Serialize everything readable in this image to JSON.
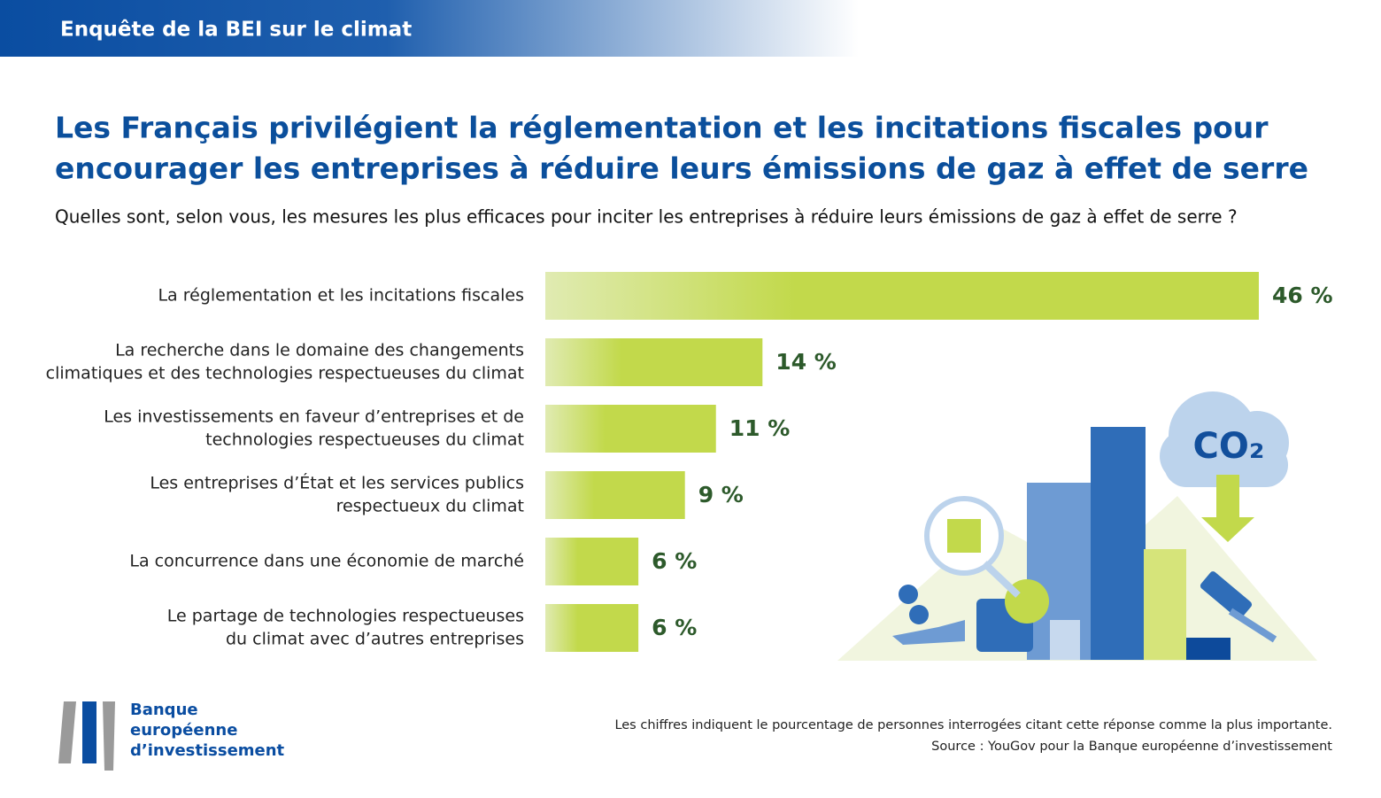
{
  "header": "Enquête de la BEI sur le climat",
  "chart_data": {
    "type": "bar",
    "orientation": "horizontal",
    "title": [
      "Les Français privilégient la réglementation et les incitations fiscales pour",
      "encourager les entreprises à réduire leurs émissions de gaz à effet de serre"
    ],
    "subtitle": "Quelles sont, selon vous, les mesures les plus efficaces pour inciter les entreprises à réduire leurs émissions de gaz à effet de serre ?",
    "categories": [
      [
        "La réglementation et les incitations fiscales"
      ],
      [
        "La recherche dans le domaine des changements",
        "climatiques et des technologies respectueuses du climat"
      ],
      [
        "Les investissements en faveur d’entreprises et de",
        "technologies respectueuses du climat"
      ],
      [
        "Les entreprises d’État et les services publics",
        "respectueux du climat"
      ],
      [
        "La concurrence dans une économie de marché"
      ],
      [
        "Le partage de technologies respectueuses",
        "du climat avec d’autres entreprises"
      ]
    ],
    "values": [
      46,
      14,
      11,
      9,
      6,
      6
    ],
    "value_labels": [
      "46 %",
      "14 %",
      "11 %",
      "9 %",
      "6 %",
      "6 %"
    ],
    "color": [
      "#e0ebb2",
      "#c2d94b"
    ],
    "footnote": "Les chiffres indiquent le pourcentage de personnes interrogées citant cette réponse comme la plus importante.",
    "source": "Source : YouGov pour la Banque européenne d’investissement"
  },
  "illustration_text": "CO₂",
  "logo": [
    "Banque",
    "européenne",
    "d’investissement"
  ]
}
